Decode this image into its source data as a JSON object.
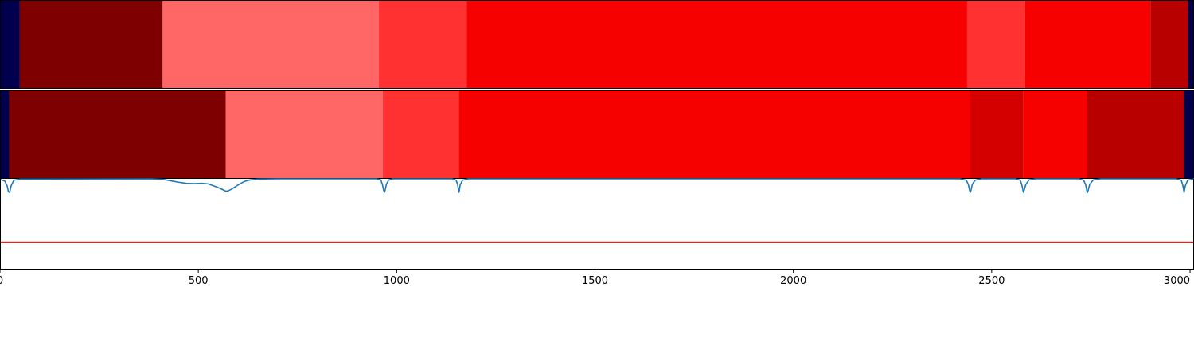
{
  "chart_data": [
    {
      "type": "heatmap",
      "xlim": [
        0,
        3010
      ],
      "segments": [
        {
          "start": 0,
          "end": 50,
          "color": "#00004c"
        },
        {
          "start": 50,
          "end": 410,
          "color": "#7f0000"
        },
        {
          "start": 410,
          "end": 955,
          "color": "#ff6666"
        },
        {
          "start": 955,
          "end": 1177,
          "color": "#ff3131"
        },
        {
          "start": 1177,
          "end": 2438,
          "color": "#f60000"
        },
        {
          "start": 2438,
          "end": 2584,
          "color": "#ff3131"
        },
        {
          "start": 2584,
          "end": 2900,
          "color": "#f60000"
        },
        {
          "start": 2900,
          "end": 2995,
          "color": "#b80000"
        },
        {
          "start": 2995,
          "end": 3010,
          "color": "#00004c"
        }
      ]
    },
    {
      "type": "heatmap",
      "xlim": [
        0,
        3010
      ],
      "segments": [
        {
          "start": 0,
          "end": 23,
          "color": "#00004c"
        },
        {
          "start": 23,
          "end": 569,
          "color": "#7f0000"
        },
        {
          "start": 569,
          "end": 965,
          "color": "#ff6666"
        },
        {
          "start": 965,
          "end": 1157,
          "color": "#ff3131"
        },
        {
          "start": 1157,
          "end": 2446,
          "color": "#f60000"
        },
        {
          "start": 2446,
          "end": 2580,
          "color": "#d40000"
        },
        {
          "start": 2580,
          "end": 2741,
          "color": "#f60000"
        },
        {
          "start": 2741,
          "end": 2985,
          "color": "#b80000"
        },
        {
          "start": 2985,
          "end": 3010,
          "color": "#00004c"
        }
      ]
    },
    {
      "type": "line",
      "xlim": [
        0,
        3010
      ],
      "ylim": [
        -2.2,
        1.0
      ],
      "ticks": [
        0,
        500,
        1000,
        1500,
        2000,
        2500,
        3000
      ],
      "tick_labels": [
        "0",
        "500",
        "1000",
        "1500",
        "2000",
        "2500",
        "3000"
      ],
      "threshold": {
        "value": -1.25,
        "color": "#e8201a"
      },
      "series": [
        {
          "color": "#1f77b4",
          "baseline": 1.0,
          "peaks": [
            {
              "center": 23,
              "depth": 0.48,
              "width": 7
            },
            {
              "center": 969,
              "depth": 0.48,
              "width": 7
            },
            {
              "center": 1157,
              "depth": 0.48,
              "width": 7
            },
            {
              "center": 2446,
              "depth": 0.48,
              "width": 7
            },
            {
              "center": 2580,
              "depth": 0.48,
              "width": 7
            },
            {
              "center": 2741,
              "depth": 0.49,
              "width": 7
            },
            {
              "center": 2985,
              "depth": 0.48,
              "width": 7
            }
          ],
          "points": [
            [
              0,
              0.98
            ],
            [
              12,
              0.92
            ],
            [
              18,
              0.75
            ],
            [
              21,
              0.55
            ],
            [
              23,
              0.52
            ],
            [
              25,
              0.55
            ],
            [
              28,
              0.75
            ],
            [
              35,
              0.95
            ],
            [
              50,
              0.99
            ],
            [
              380,
              1.0
            ],
            [
              410,
              0.98
            ],
            [
              430,
              0.93
            ],
            [
              450,
              0.88
            ],
            [
              470,
              0.84
            ],
            [
              490,
              0.83
            ],
            [
              510,
              0.84
            ],
            [
              525,
              0.82
            ],
            [
              540,
              0.74
            ],
            [
              555,
              0.66
            ],
            [
              565,
              0.59
            ],
            [
              569,
              0.56
            ],
            [
              575,
              0.57
            ],
            [
              585,
              0.64
            ],
            [
              600,
              0.78
            ],
            [
              615,
              0.9
            ],
            [
              630,
              0.96
            ],
            [
              650,
              0.99
            ],
            [
              700,
              1.0
            ],
            [
              950,
              1.0
            ],
            [
              960,
              0.96
            ],
            [
              964,
              0.8
            ],
            [
              967,
              0.6
            ],
            [
              969,
              0.52
            ],
            [
              971,
              0.6
            ],
            [
              974,
              0.8
            ],
            [
              980,
              0.96
            ],
            [
              990,
              1.0
            ],
            [
              1140,
              1.0
            ],
            [
              1150,
              0.95
            ],
            [
              1154,
              0.78
            ],
            [
              1156,
              0.58
            ],
            [
              1157,
              0.52
            ],
            [
              1158,
              0.58
            ],
            [
              1160,
              0.78
            ],
            [
              1166,
              0.95
            ],
            [
              1180,
              1.0
            ],
            [
              2420,
              1.0
            ],
            [
              2436,
              0.95
            ],
            [
              2441,
              0.8
            ],
            [
              2444,
              0.6
            ],
            [
              2446,
              0.52
            ],
            [
              2448,
              0.6
            ],
            [
              2451,
              0.8
            ],
            [
              2458,
              0.95
            ],
            [
              2475,
              1.0
            ],
            [
              2560,
              1.0
            ],
            [
              2572,
              0.95
            ],
            [
              2576,
              0.78
            ],
            [
              2579,
              0.58
            ],
            [
              2580,
              0.52
            ],
            [
              2582,
              0.6
            ],
            [
              2586,
              0.8
            ],
            [
              2594,
              0.96
            ],
            [
              2610,
              1.0
            ],
            [
              2720,
              1.0
            ],
            [
              2732,
              0.95
            ],
            [
              2737,
              0.78
            ],
            [
              2740,
              0.57
            ],
            [
              2741,
              0.51
            ],
            [
              2743,
              0.58
            ],
            [
              2747,
              0.8
            ],
            [
              2756,
              0.96
            ],
            [
              2775,
              1.0
            ],
            [
              2965,
              1.0
            ],
            [
              2978,
              0.95
            ],
            [
              2982,
              0.75
            ],
            [
              2985,
              0.52
            ],
            [
              2988,
              0.75
            ],
            [
              2994,
              0.95
            ],
            [
              3010,
              1.0
            ]
          ]
        }
      ]
    }
  ]
}
